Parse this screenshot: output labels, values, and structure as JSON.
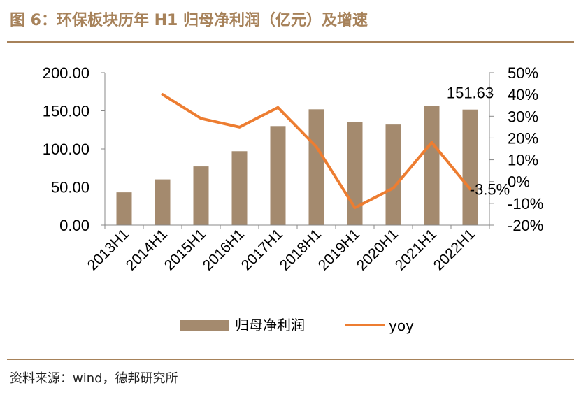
{
  "figure": {
    "title": "图 6：环保板块历年 H1 归母净利润（亿元）及增速",
    "source": "资料来源：wind，德邦研究所"
  },
  "colors": {
    "accent": "#a7825a",
    "bar": "#a48a6e",
    "line": "#ed7d31"
  },
  "chart_data": {
    "type": "bar",
    "categories": [
      "2013H1",
      "2014H1",
      "2015H1",
      "2016H1",
      "2017H1",
      "2018H1",
      "2019H1",
      "2020H1",
      "2021H1",
      "2022H1"
    ],
    "series": [
      {
        "name": "归母净利润",
        "type": "bar",
        "axis": "left",
        "values": [
          43,
          60,
          77,
          97,
          130,
          152,
          135,
          132,
          156,
          151.63
        ]
      },
      {
        "name": "yoy",
        "type": "line",
        "axis": "right",
        "values": [
          null,
          40,
          29,
          25,
          34,
          16,
          -12,
          -3,
          18,
          -3.5
        ]
      }
    ],
    "y_left": {
      "min": 0,
      "max": 200,
      "ticks": [
        "0.00",
        "50.00",
        "100.00",
        "150.00",
        "200.00"
      ]
    },
    "y_right": {
      "min": -20,
      "max": 50,
      "ticks": [
        "-20%",
        "-10%",
        "0%",
        "10%",
        "20%",
        "30%",
        "40%",
        "50%"
      ]
    },
    "data_labels": [
      {
        "series": "归母净利润",
        "index": 9,
        "text": "151.63"
      },
      {
        "series": "yoy",
        "index": 9,
        "text": "-3.5%"
      }
    ],
    "legend": {
      "placement": "bottom",
      "entries": [
        "归母净利润",
        "yoy"
      ]
    },
    "grid": false
  }
}
